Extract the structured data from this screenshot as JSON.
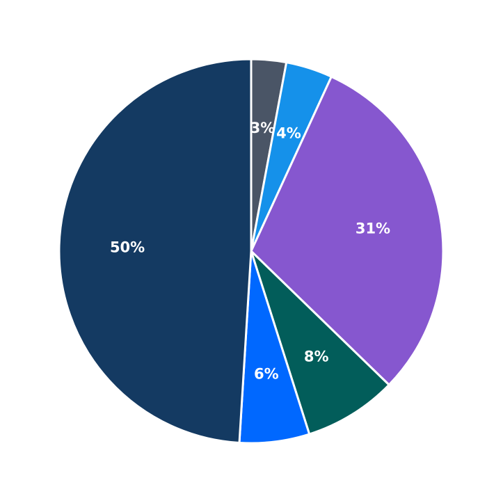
{
  "chart_data": {
    "type": "pie",
    "title": "",
    "start_angle": "top, clockwise",
    "slices": [
      {
        "label": "3%",
        "value": 3,
        "color": "#4a5566"
      },
      {
        "label": "4%",
        "value": 4,
        "color": "#1591ea"
      },
      {
        "label": "31%",
        "value": 31,
        "color": "#8657cf"
      },
      {
        "label": "8%",
        "value": 8,
        "color": "#025d5a"
      },
      {
        "label": "6%",
        "value": 6,
        "color": "#0068ff"
      },
      {
        "label": "50%",
        "value": 50,
        "color": "#143a62"
      }
    ]
  }
}
